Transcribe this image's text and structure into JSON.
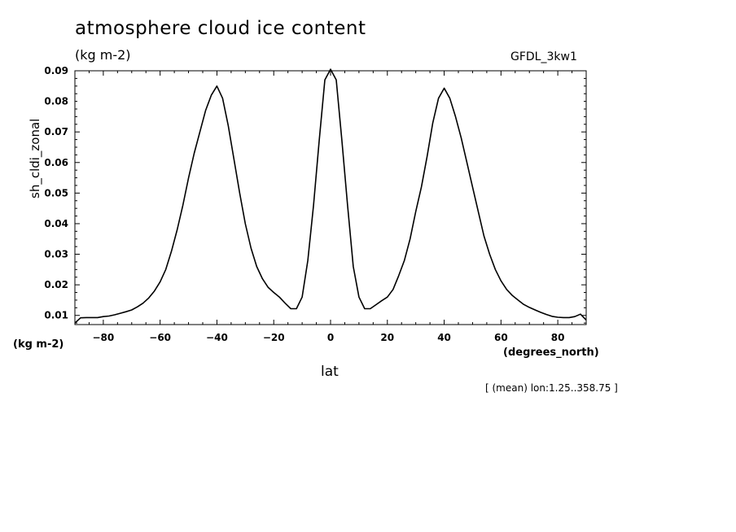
{
  "header": {
    "title": "atmosphere cloud ice content",
    "units": "(kg m-2)",
    "model": "GFDL_3kw1"
  },
  "footnote": "[ (mean) lon:1.25..358.75 ]",
  "chart_data": {
    "type": "line",
    "title": "atmosphere cloud ice content",
    "xlabel": "lat",
    "xunits": "(degrees_north)",
    "ylabel": "sh_cldi_zonal",
    "yunits": "(kg m-2)",
    "xlim": [
      -90,
      90
    ],
    "ylim": [
      0.007,
      0.09
    ],
    "xticks": [
      -80,
      -60,
      -40,
      -20,
      0,
      20,
      40,
      60,
      80
    ],
    "yticks": [
      0.01,
      0.02,
      0.03,
      0.04,
      0.05,
      0.06,
      0.07,
      0.08,
      0.09
    ],
    "grid": false,
    "series": [
      {
        "x": [
          -90,
          -88,
          -86,
          -84,
          -82,
          -80,
          -78,
          -76,
          -74,
          -72,
          -70,
          -68,
          -66,
          -64,
          -62,
          -60,
          -58,
          -56,
          -54,
          -52,
          -50,
          -48,
          -46,
          -44,
          -42,
          -40,
          -38,
          -36,
          -34,
          -32,
          -30,
          -28,
          -26,
          -24,
          -22,
          -20,
          -18,
          -16,
          -14,
          -12,
          -10,
          -8,
          -6,
          -4,
          -2,
          0,
          2,
          4,
          6,
          8,
          10,
          12,
          14,
          16,
          18,
          20,
          22,
          24,
          26,
          28,
          30,
          32,
          34,
          36,
          38,
          40,
          42,
          44,
          46,
          48,
          50,
          52,
          54,
          56,
          58,
          60,
          62,
          64,
          66,
          68,
          70,
          72,
          74,
          76,
          78,
          80,
          82,
          84,
          86,
          88,
          90
        ],
        "y": [
          0.0075,
          0.0092,
          0.0093,
          0.0093,
          0.0093,
          0.0096,
          0.0098,
          0.0102,
          0.0107,
          0.0112,
          0.0118,
          0.0128,
          0.014,
          0.0157,
          0.018,
          0.021,
          0.025,
          0.031,
          0.038,
          0.046,
          0.055,
          0.063,
          0.07,
          0.077,
          0.082,
          0.085,
          0.081,
          0.072,
          0.061,
          0.05,
          0.04,
          0.032,
          0.026,
          0.022,
          0.0192,
          0.0175,
          0.016,
          0.014,
          0.0122,
          0.0122,
          0.016,
          0.028,
          0.046,
          0.067,
          0.087,
          0.0905,
          0.087,
          0.067,
          0.046,
          0.026,
          0.016,
          0.0122,
          0.0122,
          0.0135,
          0.0148,
          0.016,
          0.0185,
          0.023,
          0.028,
          0.035,
          0.044,
          0.052,
          0.062,
          0.073,
          0.081,
          0.0843,
          0.081,
          0.075,
          0.068,
          0.06,
          0.052,
          0.044,
          0.036,
          0.03,
          0.025,
          0.0213,
          0.0185,
          0.0165,
          0.015,
          0.0136,
          0.0126,
          0.0118,
          0.011,
          0.0103,
          0.0097,
          0.0094,
          0.0093,
          0.0093,
          0.0096,
          0.0104,
          0.0085
        ]
      }
    ]
  }
}
